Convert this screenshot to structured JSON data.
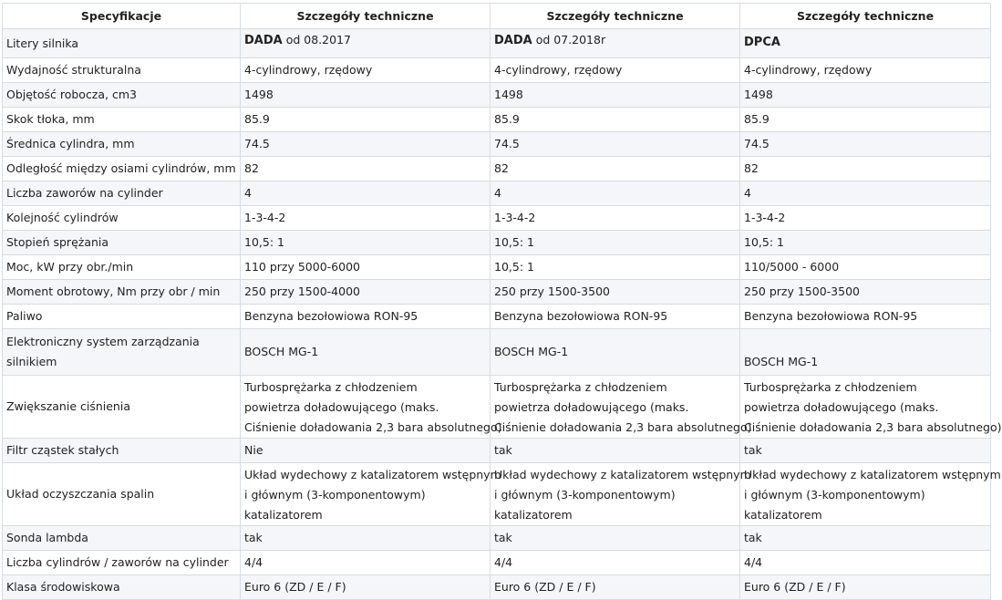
{
  "headers": [
    "Specyfikacje",
    "Szczegóły techniczne",
    "Szczegóły techniczne",
    "Szczegóły techniczne"
  ],
  "rows": [
    {
      "label": "Litery silnika",
      "cells": [
        {
          "code": "DADA",
          "suffix": " od 08.2017"
        },
        {
          "code": "DADA",
          "suffix": " od 07.2018r"
        },
        {
          "code": "DPCA",
          "suffix": ""
        }
      ]
    },
    {
      "label": "Wydajność strukturalna",
      "cells": [
        [
          "4-cylindrowy, rzędowy"
        ],
        [
          "4-cylindrowy, rzędowy"
        ],
        [
          "4-cylindrowy, rzędowy"
        ]
      ]
    },
    {
      "label": "Objętość robocza, cm3",
      "cells": [
        [
          "1498"
        ],
        [
          "1498"
        ],
        [
          "1498"
        ]
      ]
    },
    {
      "label": "Skok tłoka, mm",
      "cells": [
        [
          "85.9"
        ],
        [
          "85.9"
        ],
        [
          "85.9"
        ]
      ]
    },
    {
      "label": "Średnica cylindra, mm",
      "cells": [
        [
          "74.5"
        ],
        [
          "74.5"
        ],
        [
          "74.5"
        ]
      ]
    },
    {
      "label": "Odległość między osiami cylindrów, mm",
      "cells": [
        [
          "82"
        ],
        [
          "82"
        ],
        [
          "82"
        ]
      ]
    },
    {
      "label": "Liczba zaworów na cylinder",
      "cells": [
        [
          "4"
        ],
        [
          "4"
        ],
        [
          "4"
        ]
      ]
    },
    {
      "label": "Kolejność cylindrów",
      "cells": [
        [
          "1-3-4-2"
        ],
        [
          "1-3-4-2"
        ],
        [
          "1-3-4-2"
        ]
      ]
    },
    {
      "label": "Stopień sprężania",
      "cells": [
        [
          "10,5: 1"
        ],
        [
          "10,5: 1"
        ],
        [
          "10,5: 1"
        ]
      ]
    },
    {
      "label": "Moc, kW przy obr./min",
      "cells": [
        [
          "110 przy 5000-6000"
        ],
        [
          "10,5: 1"
        ],
        [
          "110/5000 - 6000"
        ]
      ]
    },
    {
      "label": "Moment obrotowy, Nm przy obr / min",
      "cells": [
        [
          "250 przy 1500-4000"
        ],
        [
          "250 przy 1500-3500"
        ],
        [
          "250 przy 1500-3500"
        ]
      ]
    },
    {
      "label": "Paliwo",
      "cells": [
        [
          "Benzyna bezołowiowa RON-95"
        ],
        [
          "Benzyna bezołowiowa RON-95"
        ],
        [
          "Benzyna bezołowiowa RON-95"
        ]
      ]
    },
    {
      "label": "Elektroniczny system zarządzania silnikiem",
      "cells": [
        [
          "BOSCH MG-1"
        ],
        [
          "BOSCH MG-1"
        ],
        [
          "BOSCH MG-1"
        ]
      ]
    },
    {
      "label": "Zwiększanie ciśnienia",
      "cells": [
        [
          "Turbosprężarka z chłodzeniem",
          "powietrza doładowującego (maks.",
          "Ciśnienie doładowania 2,3 bara absolutnego)"
        ],
        [
          "Turbosprężarka z chłodzeniem",
          "powietrza doładowującego (maks.",
          "Ciśnienie doładowania 2,3 bara absolutnego)"
        ],
        [
          "Turbosprężarka z chłodzeniem",
          "powietrza doładowującego (maks.",
          "Ciśnienie doładowania 2,3 bara absolutnego)"
        ]
      ]
    },
    {
      "label": "Filtr cząstek stałych",
      "cells": [
        [
          "Nie"
        ],
        [
          "tak"
        ],
        [
          "tak"
        ]
      ]
    },
    {
      "label": "Układ oczyszczania spalin",
      "cells": [
        [
          "Układ wydechowy z katalizatorem wstępnym",
          "i głównym (3-komponentowym)",
          "katalizatorem"
        ],
        [
          "Układ wydechowy z katalizatorem wstępnym",
          "i głównym (3-komponentowym)",
          "katalizatorem"
        ],
        [
          "Układ wydechowy z katalizatorem wstępnym",
          "i głównym (3-komponentowym)",
          "katalizatorem"
        ]
      ]
    },
    {
      "label": "Sonda lambda",
      "cells": [
        [
          "tak"
        ],
        [
          "tak"
        ],
        [
          "tak"
        ]
      ]
    },
    {
      "label": "Liczba cylindrów / zaworów na cylinder",
      "cells": [
        [
          "4/4"
        ],
        [
          "4/4"
        ],
        [
          "4/4"
        ]
      ]
    },
    {
      "label": "Klasa środowiskowa",
      "cells": [
        [
          "Euro 6 (ZD / E / F)"
        ],
        [
          "Euro 6 (ZD / E / F)"
        ],
        [
          "Euro 6 (ZD / E / F)"
        ]
      ]
    }
  ]
}
